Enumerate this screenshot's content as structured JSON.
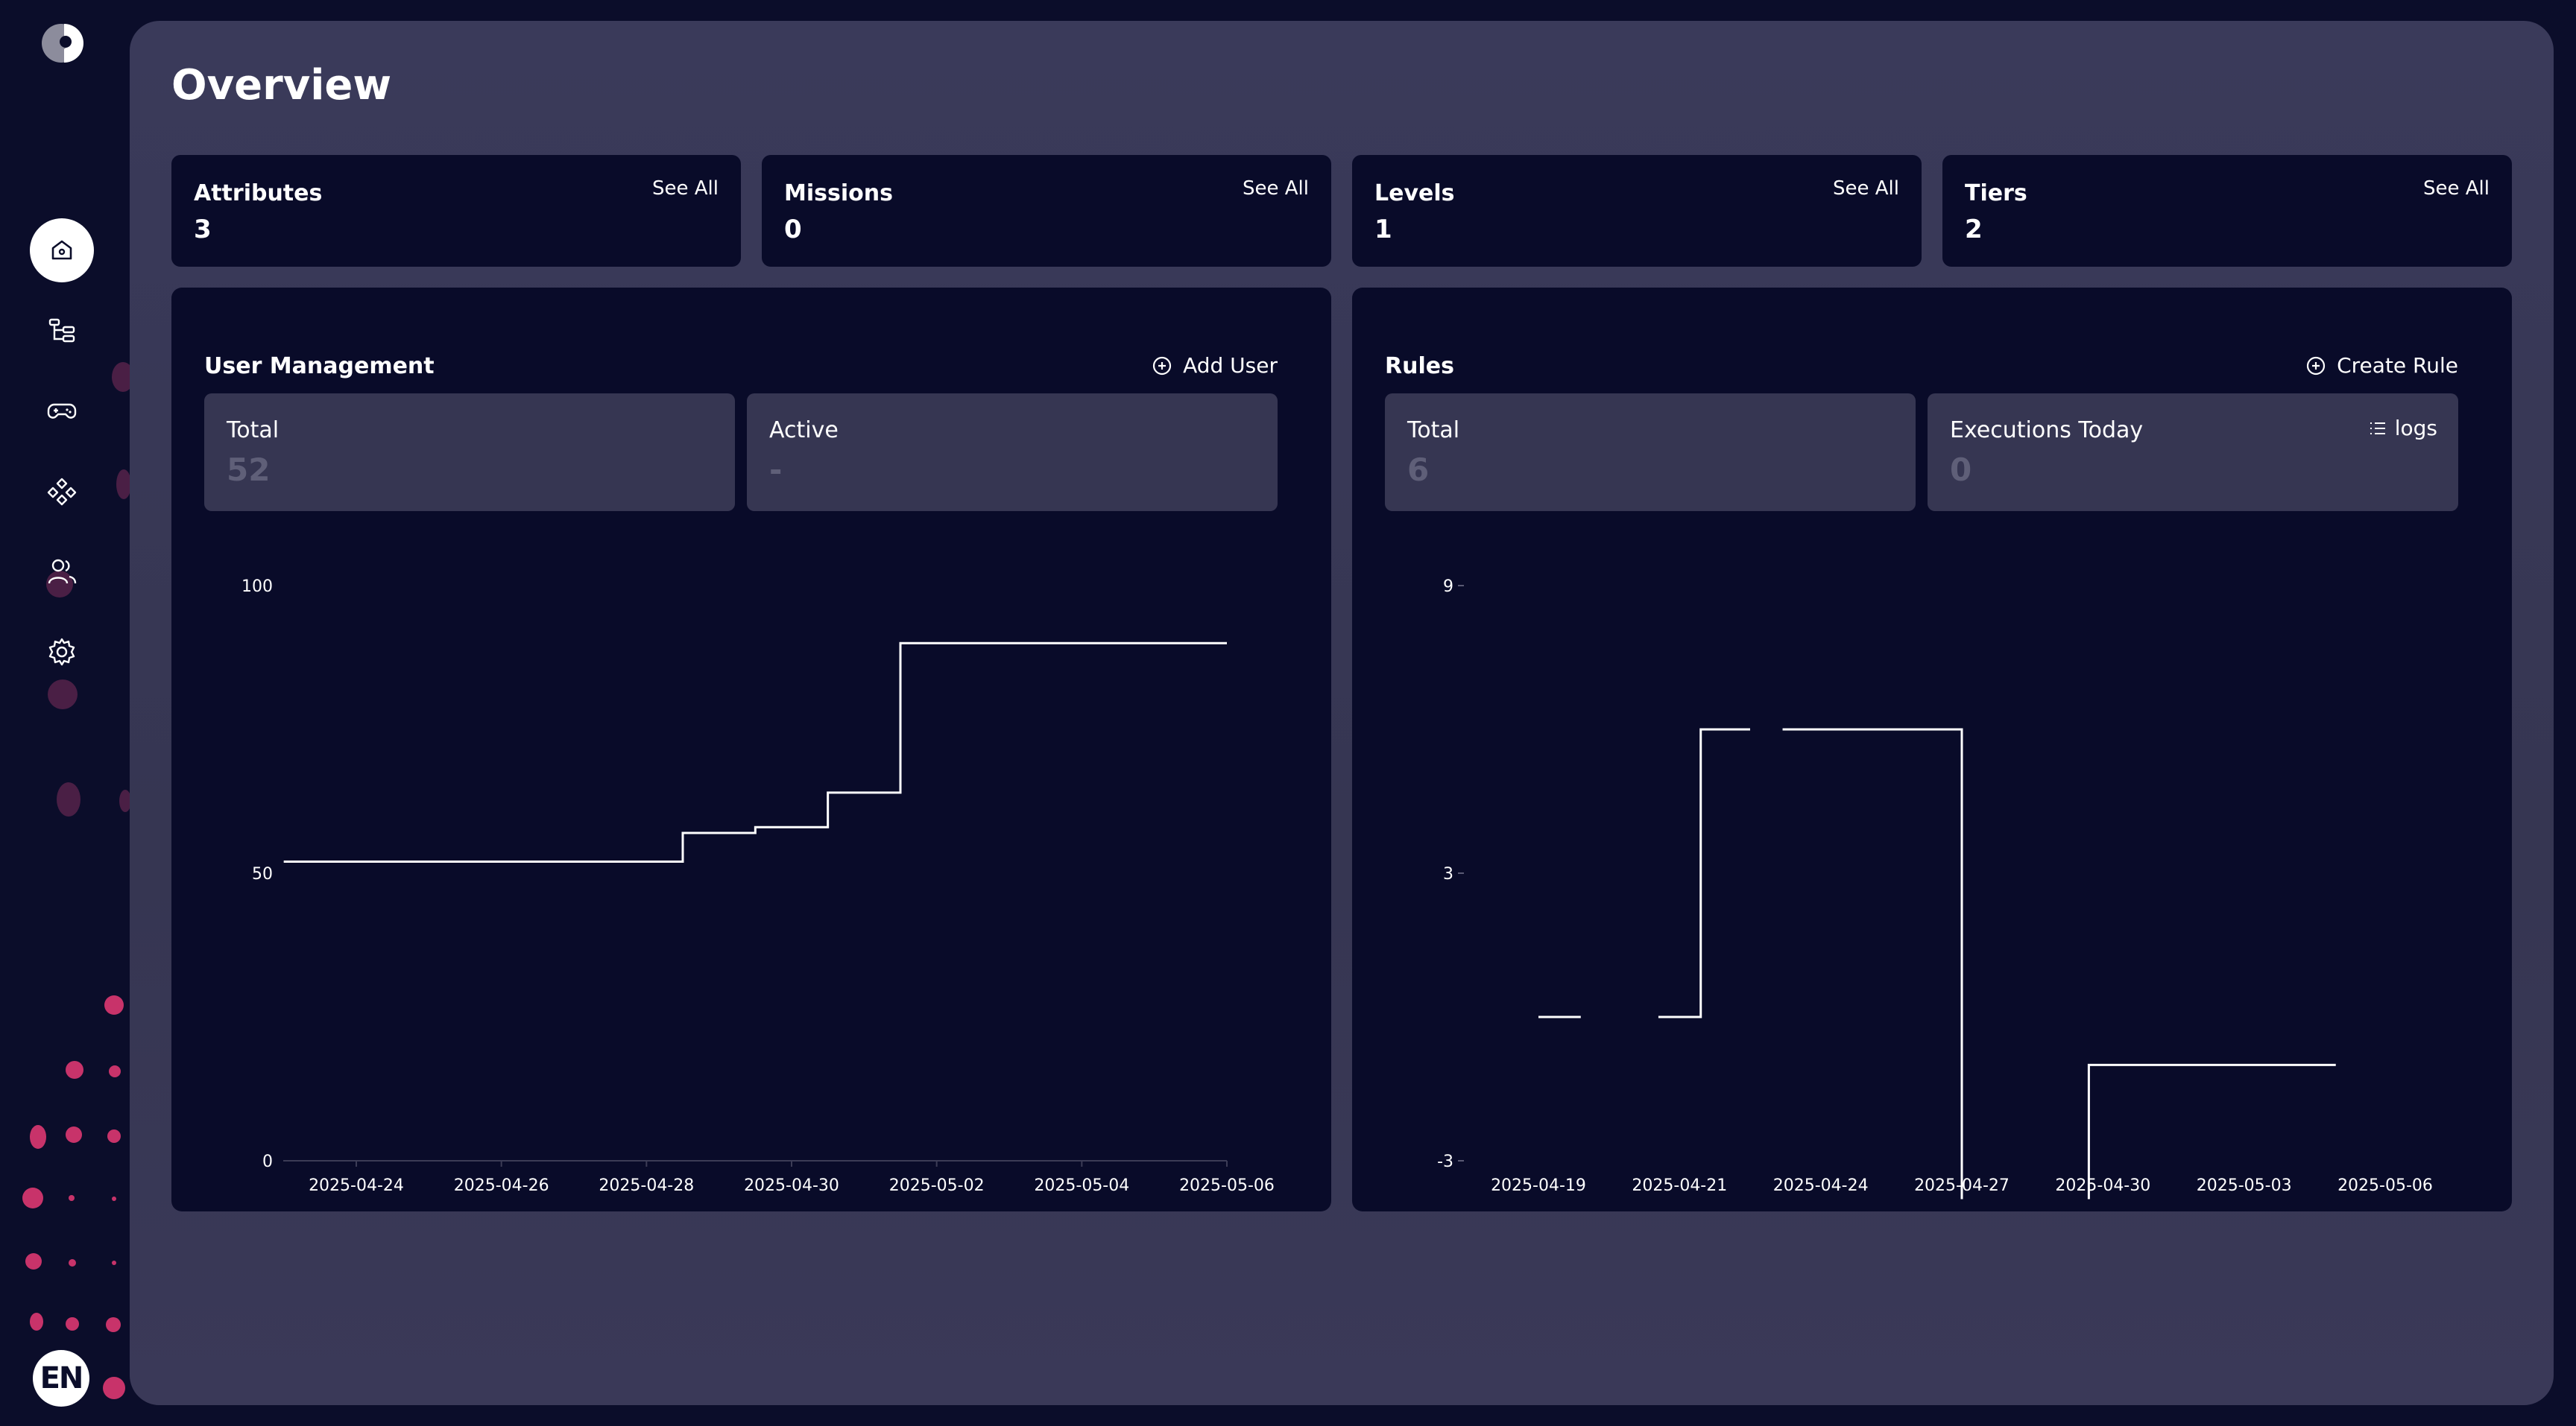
{
  "app": {
    "language_badge": "EN"
  },
  "sidebar": {
    "items": [
      {
        "icon": "home-icon",
        "active": true
      },
      {
        "icon": "tree-structure-icon",
        "active": false
      },
      {
        "icon": "gamepad-icon",
        "active": false
      },
      {
        "icon": "components-icon",
        "active": false
      },
      {
        "icon": "users-icon",
        "active": false
      },
      {
        "icon": "gear-icon",
        "active": false
      }
    ]
  },
  "page": {
    "title": "Overview"
  },
  "stats": [
    {
      "label": "Attributes",
      "value": "3",
      "see_all": "See All"
    },
    {
      "label": "Missions",
      "value": "0",
      "see_all": "See All"
    },
    {
      "label": "Levels",
      "value": "1",
      "see_all": "See All"
    },
    {
      "label": "Tiers",
      "value": "2",
      "see_all": "See All"
    }
  ],
  "user_management": {
    "title": "User Management",
    "action": "Add User",
    "metrics": [
      {
        "label": "Total",
        "value": "52"
      },
      {
        "label": "Active",
        "value": "-"
      }
    ]
  },
  "rules": {
    "title": "Rules",
    "action": "Create Rule",
    "metrics": [
      {
        "label": "Total",
        "value": "6"
      },
      {
        "label": "Executions Today",
        "value": "0",
        "link": "logs"
      }
    ]
  },
  "chart_data": [
    {
      "type": "line",
      "step": true,
      "name": "User Management",
      "ylim": [
        0,
        100
      ],
      "yticks": [
        "0",
        "50",
        "100"
      ],
      "xticks": [
        "2025-04-24",
        "2025-04-26",
        "2025-04-28",
        "2025-04-30",
        "2025-05-02",
        "2025-05-04",
        "2025-05-06"
      ],
      "points": [
        {
          "x": "2025-04-23",
          "y": 52
        },
        {
          "x": "2025-04-28.5",
          "y": 52
        },
        {
          "x": "2025-04-28.5",
          "y": 57
        },
        {
          "x": "2025-04-29.5",
          "y": 57
        },
        {
          "x": "2025-04-29.5",
          "y": 58
        },
        {
          "x": "2025-04-30.5",
          "y": 58
        },
        {
          "x": "2025-04-30.5",
          "y": 64
        },
        {
          "x": "2025-05-01.5",
          "y": 64
        },
        {
          "x": "2025-05-01.5",
          "y": 90
        },
        {
          "x": "2025-05-06",
          "y": 90
        }
      ],
      "color": "#ffffff",
      "line_color": "#ffffff",
      "grid": false
    },
    {
      "type": "line",
      "step": true,
      "name": "Rules",
      "ylim": [
        -3,
        9
      ],
      "yticks": [
        "-3",
        "3",
        "9"
      ],
      "xticks": [
        "2025-04-19",
        "2025-04-21",
        "2025-04-24",
        "2025-04-27",
        "2025-04-30",
        "2025-05-03",
        "2025-05-06"
      ],
      "segments": [
        [
          [
            0.0,
            0.0
          ],
          [
            0.3,
            0.0
          ]
        ],
        [
          [
            0.85,
            0.0
          ],
          [
            1.15,
            0.0
          ],
          [
            1.15,
            6.0
          ],
          [
            1.5,
            6.0
          ]
        ],
        [
          [
            1.73,
            6.0
          ],
          [
            3.0,
            6.0
          ],
          [
            3.0,
            -3.8
          ]
        ],
        [
          [
            3.9,
            -3.8
          ],
          [
            3.9,
            -1.0
          ],
          [
            5.65,
            -1.0
          ]
        ]
      ],
      "color": "#ffffff",
      "grid": false
    }
  ]
}
